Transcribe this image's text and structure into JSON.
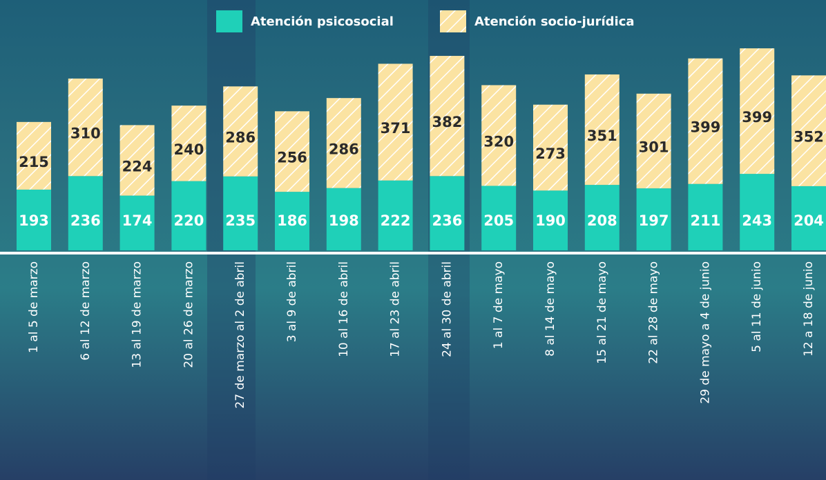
{
  "chart_data": {
    "type": "stacked_bar",
    "categories": [
      "1 al 5 de marzo",
      "6 al 12 de marzo",
      "13 al 19 de marzo",
      "20 al 26 de marzo",
      "27 de marzo al 2 de abril",
      "3 al 9 de abril",
      "10 al 16 de abril",
      "17 al 23 de abril",
      "24 al 30 de abril",
      "1 al 7 de mayo",
      "8 al 14 de mayo",
      "15 al 21 de mayo",
      "22 al 28 de mayo",
      "29 de mayo a 4 de junio",
      "5 al 11 de junio",
      "12 a 18 de junio"
    ],
    "series": [
      {
        "name": "Atención psicosocial",
        "color": "#1fd0b8",
        "values": [
          193,
          236,
          174,
          220,
          235,
          186,
          198,
          222,
          236,
          205,
          190,
          208,
          197,
          211,
          243,
          204
        ]
      },
      {
        "name": "Atención socio-jurídica",
        "color": "#fbe3a2",
        "hatch": true,
        "values": [
          215,
          310,
          224,
          240,
          286,
          256,
          286,
          371,
          382,
          320,
          273,
          351,
          301,
          399,
          399,
          352
        ]
      }
    ],
    "ylim": [
      0,
      800
    ]
  }
}
